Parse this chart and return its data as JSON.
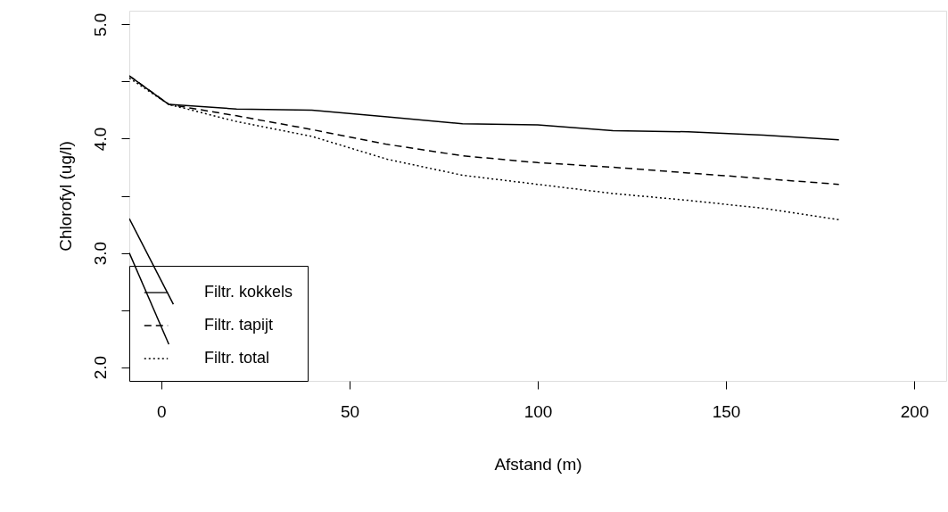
{
  "chart_data": {
    "type": "line",
    "xlabel": "Afstand (m)",
    "ylabel": "Chlorofyl (ug/l)",
    "xlim": [
      -8.5,
      208.5
    ],
    "xticks": [
      0,
      50,
      100,
      150,
      200
    ],
    "ylim": [
      1.88,
      5.12
    ],
    "yticks": [
      {
        "value": 2,
        "label": "2.0"
      },
      {
        "value": 2.5,
        "label": null
      },
      {
        "value": 3,
        "label": "3.0"
      },
      {
        "value": 3.5,
        "label": null
      },
      {
        "value": 4,
        "label": "4.0"
      },
      {
        "value": 4.5,
        "label": null
      },
      {
        "value": 5,
        "label": "5.0"
      }
    ],
    "grid": false,
    "legend": "bottom left",
    "marker": "none",
    "series": [
      {
        "name": "Filtr. kokkels",
        "color": "#000000",
        "line_style": "solid",
        "x": [
          -8.5,
          2,
          20,
          40,
          60,
          80,
          100,
          120,
          140,
          160,
          180
        ],
        "values": [
          4.55,
          4.3,
          4.26,
          4.25,
          4.19,
          4.13,
          4.12,
          4.07,
          4.06,
          4.03,
          3.99
        ]
      },
      {
        "name": "Filtr. tapijt",
        "color": "#000000",
        "line_style": "dashed",
        "x": [
          -8.5,
          2,
          20,
          40,
          60,
          80,
          100,
          120,
          140,
          160,
          180
        ],
        "values": [
          4.55,
          4.3,
          4.2,
          4.08,
          3.95,
          3.85,
          3.79,
          3.75,
          3.7,
          3.65,
          3.6
        ]
      },
      {
        "name": "Filtr. total",
        "color": "#000000",
        "line_style": "dotted",
        "x": [
          -8.5,
          2,
          20,
          40,
          60,
          80,
          100,
          120,
          140,
          160,
          180
        ],
        "values": [
          4.53,
          4.3,
          4.15,
          4.02,
          3.82,
          3.68,
          3.6,
          3.52,
          3.46,
          3.39,
          3.29
        ]
      },
      {
        "color": "#000000",
        "line_style": "solid",
        "x": [
          -8.5,
          3.2
        ],
        "values": [
          3.3,
          2.55
        ]
      },
      {
        "color": "#000000",
        "line_style": "solid",
        "x": [
          -8.5,
          2
        ],
        "values": [
          3.0,
          2.2
        ]
      }
    ]
  }
}
